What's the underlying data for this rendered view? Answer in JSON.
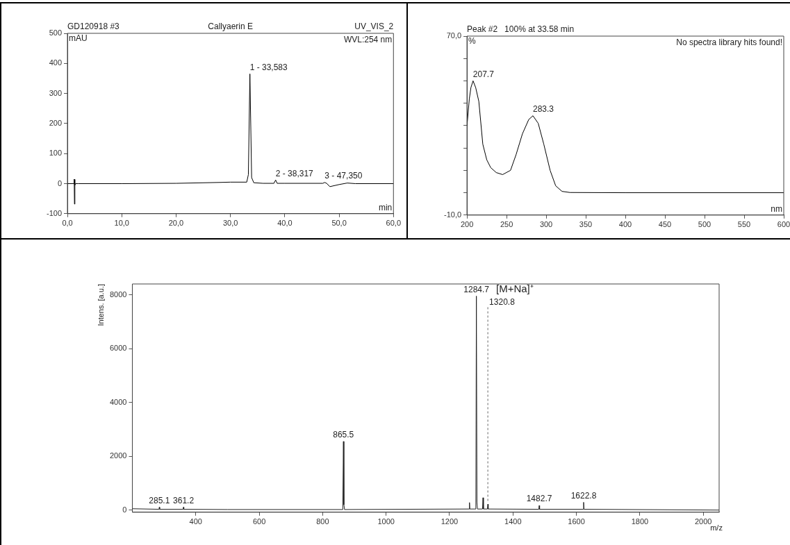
{
  "chart_data": [
    {
      "type": "line",
      "title": "Callyaerin E",
      "xlabel": "min",
      "ylabel": "mAU",
      "color": "#000000",
      "x": [
        0,
        1.2,
        1.25,
        1.3,
        1.35,
        1.4,
        1.5,
        2,
        10,
        20,
        28,
        30,
        33,
        33.3,
        33.583,
        33.9,
        34.3,
        36,
        38,
        38.317,
        38.6,
        40,
        47,
        47.35,
        47.7,
        48.3,
        50,
        51.5,
        53,
        60
      ],
      "values": [
        0,
        0,
        15,
        -68,
        14,
        -5,
        0,
        0,
        0,
        1,
        4,
        5,
        5,
        30,
        365,
        20,
        3,
        1,
        1,
        12,
        1,
        1,
        1,
        4,
        1,
        -10,
        -3,
        2,
        0,
        0
      ],
      "xlim": [
        0,
        60
      ],
      "ylim": [
        -100,
        500
      ],
      "xticks": [
        {
          "value": 0,
          "label": "0,0"
        },
        {
          "value": 10,
          "label": "10,0"
        },
        {
          "value": 20,
          "label": "20,0"
        },
        {
          "value": 30,
          "label": "30,0"
        },
        {
          "value": 40,
          "label": "40,0"
        },
        {
          "value": 50,
          "label": "50,0"
        },
        {
          "value": 60,
          "label": "60,0"
        }
      ],
      "yticks": [
        -100,
        0,
        100,
        200,
        300,
        400,
        500
      ],
      "annotations": [
        "GD120918 #3",
        "UV_VIS_2",
        "WVL:254 nm",
        {
          "text": "1 - 33,583",
          "x": 33.583,
          "y": 365
        },
        {
          "text": "2 - 38,317",
          "x": 38.317,
          "y": 12
        },
        {
          "text": "3 - 47,350",
          "x": 47.35,
          "y": 4
        }
      ]
    },
    {
      "type": "line",
      "title": "Peak #2   100% at 33.58 min",
      "xlabel": "nm",
      "ylabel": "%",
      "color": "#000000",
      "x": [
        200,
        203,
        205,
        207.7,
        211,
        215,
        220,
        225,
        230,
        237,
        245,
        255,
        262,
        270,
        278,
        283.3,
        290,
        297,
        305,
        312,
        320,
        330,
        400,
        600
      ],
      "values": [
        29.8,
        42,
        47,
        50,
        47,
        40.8,
        21.7,
        14.7,
        11.2,
        9,
        8.1,
        10,
        17,
        26.3,
        32.7,
        34.4,
        31,
        21.7,
        10,
        3.1,
        0.6,
        0.1,
        0,
        0
      ],
      "xlim": [
        200,
        600
      ],
      "ylim": [
        -10,
        70
      ],
      "xticks": [
        200,
        250,
        300,
        350,
        400,
        450,
        500,
        550,
        600
      ],
      "yticks": [
        {
          "value": -10,
          "label": "-10,0"
        },
        {
          "value": 0,
          "label": null
        },
        {
          "value": 10,
          "label": null
        },
        {
          "value": 20,
          "label": null
        },
        {
          "value": 30,
          "label": null
        },
        {
          "value": 40,
          "label": null
        },
        {
          "value": 50,
          "label": null
        },
        {
          "value": 60,
          "label": null
        },
        {
          "value": 70,
          "label": "70,0"
        }
      ],
      "annotations": [
        "No spectra library hits found!",
        {
          "text": "207.7",
          "x": 207.7,
          "y": 50
        },
        {
          "text": "283.3",
          "x": 283.3,
          "y": 34.4
        }
      ]
    },
    {
      "type": "line",
      "xlabel": "m/z",
      "ylabel": "Intens. [a.u.]",
      "color": "#222222",
      "x": [
        200,
        284,
        285.1,
        286.2,
        360,
        361.2,
        362.4,
        500,
        863.5,
        865.5,
        867,
        869,
        1262,
        1263,
        1264,
        1283,
        1284.7,
        1286.5,
        1288,
        1304,
        1305.5,
        1307,
        1319.5,
        1320.8,
        1322,
        1481.5,
        1482.7,
        1484,
        1621.5,
        1622.8,
        1624,
        2050
      ],
      "values": [
        50,
        30,
        110,
        30,
        30,
        110,
        30,
        20,
        20,
        2550,
        200,
        20,
        40,
        280,
        40,
        40,
        7950,
        300,
        40,
        40,
        460,
        40,
        40,
        220,
        40,
        30,
        170,
        30,
        30,
        290,
        30,
        0
      ],
      "xlim": [
        200,
        2050
      ],
      "ylim": [
        -80,
        8400
      ],
      "xticks": [
        400,
        600,
        800,
        1000,
        1200,
        1400,
        1600,
        1800,
        2000
      ],
      "yticks": [
        0,
        2000,
        4000,
        6000,
        8000
      ],
      "annotations": [
        {
          "text": "285.1",
          "x": 285.1,
          "y": 110
        },
        {
          "text": "361.2",
          "x": 361.2,
          "y": 110
        },
        {
          "text": "865.5",
          "x": 865.5,
          "y": 2550
        },
        {
          "text": "1284.7",
          "x": 1284.7,
          "y": 7950
        },
        {
          "text": "[M+Na]⁺",
          "x": 1284.7,
          "y": 7950
        },
        {
          "text": "1320.8",
          "x": 1320.8,
          "y": 220
        },
        {
          "text": "1482.7",
          "x": 1482.7,
          "y": 170
        },
        {
          "text": "1622.8",
          "x": 1622.8,
          "y": 290
        }
      ]
    }
  ]
}
